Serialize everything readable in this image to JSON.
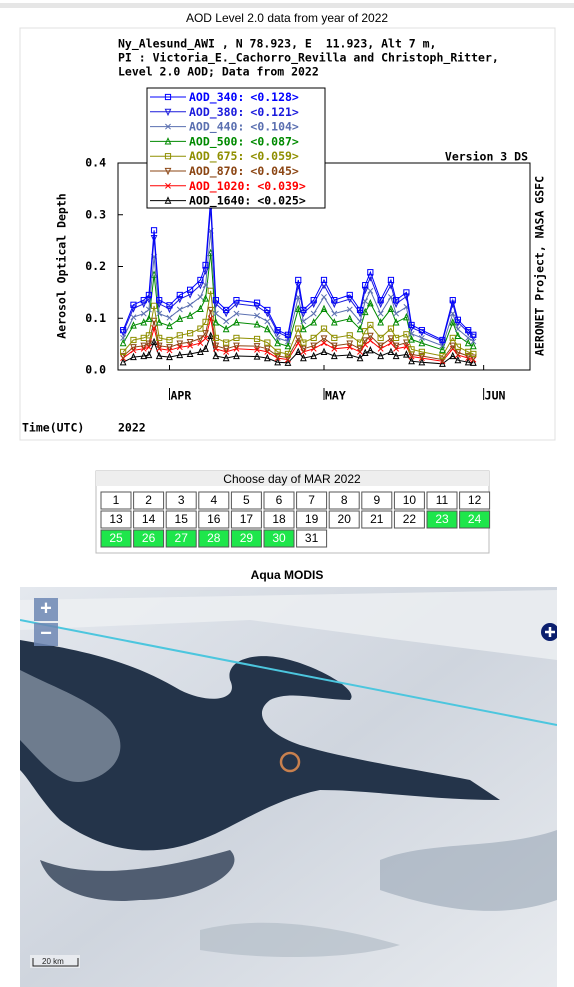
{
  "chart_data": {
    "type": "line",
    "title": "AOD Level 2.0 data from year of 2022",
    "header": [
      "Ny_Alesund_AWI , N 78.923, E  11.923, Alt 7 m,",
      "PI : Victoria_E._Cachorro_Revilla and Christoph_Ritter,",
      "Level 2.0 AOD; Data from 2022"
    ],
    "ylabel": "Aerosol Optical Depth",
    "xlabel": "Time(UTC)",
    "year_label": "2022",
    "version": "Version 3 DS",
    "side_label": "AERONET Project, NASA GSFC",
    "xlim": [
      81,
      161
    ],
    "xticks": [
      {
        "value": 91,
        "label": "APR"
      },
      {
        "value": 121,
        "label": "MAY"
      },
      {
        "value": 152,
        "label": "JUN"
      }
    ],
    "ylim": [
      0,
      0.4
    ],
    "yticks": [
      {
        "value": 0,
        "label": "0.0"
      },
      0.1,
      0.2,
      0.3,
      0.4
    ],
    "grid": false,
    "x": [
      82,
      84,
      86,
      87,
      88,
      89,
      91,
      93,
      95,
      97,
      98,
      99,
      100,
      102,
      104,
      108,
      110,
      112,
      114,
      116,
      117,
      119,
      121,
      123,
      126,
      128,
      129,
      130,
      132,
      134,
      135,
      137,
      138,
      140,
      144,
      146,
      147,
      149,
      150
    ],
    "series": [
      {
        "name": "AOD_340:",
        "mean": 0.128,
        "mean_label": "<0.128>",
        "color": "#0000ff",
        "marker": "square",
        "values": [
          0.077,
          0.126,
          0.135,
          0.145,
          0.27,
          0.135,
          0.125,
          0.145,
          0.155,
          0.174,
          0.203,
          0.332,
          0.135,
          0.116,
          0.135,
          0.13,
          0.116,
          0.077,
          0.068,
          0.174,
          0.116,
          0.135,
          0.174,
          0.135,
          0.145,
          0.116,
          0.164,
          0.189,
          0.135,
          0.174,
          0.135,
          0.15,
          0.087,
          0.077,
          0.058,
          0.135,
          0.097,
          0.077,
          0.068
        ]
      },
      {
        "name": "AOD_380:",
        "mean": 0.121,
        "mean_label": "<0.121>",
        "color": "#1a1adc",
        "marker": "triangle-down",
        "values": [
          0.073,
          0.119,
          0.128,
          0.137,
          0.255,
          0.128,
          0.118,
          0.137,
          0.146,
          0.164,
          0.192,
          0.314,
          0.128,
          0.11,
          0.128,
          0.123,
          0.11,
          0.073,
          0.064,
          0.164,
          0.11,
          0.128,
          0.164,
          0.128,
          0.137,
          0.11,
          0.155,
          0.179,
          0.128,
          0.164,
          0.128,
          0.142,
          0.082,
          0.073,
          0.055,
          0.128,
          0.092,
          0.073,
          0.064
        ]
      },
      {
        "name": "AOD_440:",
        "mean": 0.104,
        "mean_label": "<0.104>",
        "color": "#5a6fb0",
        "marker": "x",
        "values": [
          0.062,
          0.102,
          0.109,
          0.117,
          0.219,
          0.109,
          0.101,
          0.117,
          0.126,
          0.141,
          0.164,
          0.269,
          0.109,
          0.094,
          0.109,
          0.105,
          0.094,
          0.062,
          0.055,
          0.141,
          0.094,
          0.109,
          0.141,
          0.109,
          0.117,
          0.094,
          0.133,
          0.153,
          0.109,
          0.141,
          0.109,
          0.122,
          0.07,
          0.062,
          0.047,
          0.109,
          0.079,
          0.062,
          0.055
        ]
      },
      {
        "name": "AOD_500:",
        "mean": 0.087,
        "mean_label": "<0.087>",
        "color": "#008a00",
        "marker": "triangle-up",
        "values": [
          0.052,
          0.086,
          0.092,
          0.099,
          0.184,
          0.092,
          0.085,
          0.099,
          0.105,
          0.118,
          0.138,
          0.226,
          0.092,
          0.079,
          0.092,
          0.088,
          0.079,
          0.052,
          0.046,
          0.118,
          0.079,
          0.092,
          0.118,
          0.092,
          0.099,
          0.079,
          0.112,
          0.129,
          0.092,
          0.118,
          0.092,
          0.102,
          0.059,
          0.052,
          0.039,
          0.092,
          0.066,
          0.052,
          0.046
        ]
      },
      {
        "name": "AOD_675:",
        "mean": 0.059,
        "mean_label": "<0.059>",
        "color": "#8f8f00",
        "marker": "square",
        "values": [
          0.035,
          0.058,
          0.062,
          0.067,
          0.124,
          0.062,
          0.058,
          0.067,
          0.071,
          0.08,
          0.093,
          0.153,
          0.062,
          0.053,
          0.062,
          0.06,
          0.053,
          0.035,
          0.031,
          0.08,
          0.053,
          0.062,
          0.08,
          0.062,
          0.067,
          0.053,
          0.075,
          0.087,
          0.062,
          0.08,
          0.062,
          0.069,
          0.04,
          0.035,
          0.027,
          0.062,
          0.045,
          0.035,
          0.031
        ]
      },
      {
        "name": "AOD_870:",
        "mean": 0.045,
        "mean_label": "<0.045>",
        "color": "#8b4513",
        "marker": "triangle-down",
        "values": [
          0.027,
          0.044,
          0.047,
          0.051,
          0.095,
          0.047,
          0.044,
          0.051,
          0.054,
          0.061,
          0.071,
          0.116,
          0.047,
          0.041,
          0.047,
          0.046,
          0.041,
          0.027,
          0.024,
          0.061,
          0.041,
          0.047,
          0.061,
          0.047,
          0.051,
          0.041,
          0.057,
          0.066,
          0.047,
          0.061,
          0.047,
          0.053,
          0.03,
          0.027,
          0.02,
          0.047,
          0.034,
          0.027,
          0.024
        ]
      },
      {
        "name": "AOD_1020:",
        "mean": 0.039,
        "mean_label": "<0.039>",
        "color": "#ff0000",
        "marker": "x",
        "values": [
          0.023,
          0.038,
          0.041,
          0.044,
          0.081,
          0.041,
          0.038,
          0.044,
          0.047,
          0.052,
          0.061,
          0.1,
          0.041,
          0.035,
          0.041,
          0.039,
          0.035,
          0.023,
          0.02,
          0.052,
          0.035,
          0.041,
          0.052,
          0.041,
          0.044,
          0.035,
          0.049,
          0.057,
          0.041,
          0.052,
          0.041,
          0.045,
          0.026,
          0.023,
          0.017,
          0.041,
          0.029,
          0.023,
          0.02
        ]
      },
      {
        "name": "AOD_1640:",
        "mean": 0.025,
        "mean_label": "<0.025>",
        "color": "#000000",
        "marker": "triangle-up",
        "values": [
          0.015,
          0.025,
          0.027,
          0.029,
          0.054,
          0.027,
          0.025,
          0.029,
          0.031,
          0.035,
          0.041,
          0.066,
          0.027,
          0.023,
          0.027,
          0.026,
          0.023,
          0.015,
          0.014,
          0.035,
          0.023,
          0.027,
          0.035,
          0.027,
          0.029,
          0.023,
          0.033,
          0.038,
          0.027,
          0.035,
          0.027,
          0.03,
          0.017,
          0.015,
          0.012,
          0.027,
          0.019,
          0.015,
          0.014
        ]
      }
    ]
  },
  "calendar": {
    "title": "Choose day of MAR 2022",
    "days": [
      {
        "day": 1,
        "has_data": false
      },
      {
        "day": 2,
        "has_data": false
      },
      {
        "day": 3,
        "has_data": false
      },
      {
        "day": 4,
        "has_data": false
      },
      {
        "day": 5,
        "has_data": false
      },
      {
        "day": 6,
        "has_data": false
      },
      {
        "day": 7,
        "has_data": false
      },
      {
        "day": 8,
        "has_data": false
      },
      {
        "day": 9,
        "has_data": false
      },
      {
        "day": 10,
        "has_data": false
      },
      {
        "day": 11,
        "has_data": false
      },
      {
        "day": 12,
        "has_data": false
      },
      {
        "day": 13,
        "has_data": false
      },
      {
        "day": 14,
        "has_data": false
      },
      {
        "day": 15,
        "has_data": false
      },
      {
        "day": 16,
        "has_data": false
      },
      {
        "day": 17,
        "has_data": false
      },
      {
        "day": 18,
        "has_data": false
      },
      {
        "day": 19,
        "has_data": false
      },
      {
        "day": 20,
        "has_data": false
      },
      {
        "day": 21,
        "has_data": false
      },
      {
        "day": 22,
        "has_data": false
      },
      {
        "day": 23,
        "has_data": true
      },
      {
        "day": 24,
        "has_data": true
      },
      {
        "day": 25,
        "has_data": true
      },
      {
        "day": 26,
        "has_data": true
      },
      {
        "day": 27,
        "has_data": true
      },
      {
        "day": 28,
        "has_data": true
      },
      {
        "day": 29,
        "has_data": true
      },
      {
        "day": 30,
        "has_data": true
      },
      {
        "day": 31,
        "has_data": false
      }
    ]
  },
  "map": {
    "title": "Aqua MODIS",
    "zoom_in": "+",
    "zoom_out": "−",
    "scale_label": "20 km"
  }
}
